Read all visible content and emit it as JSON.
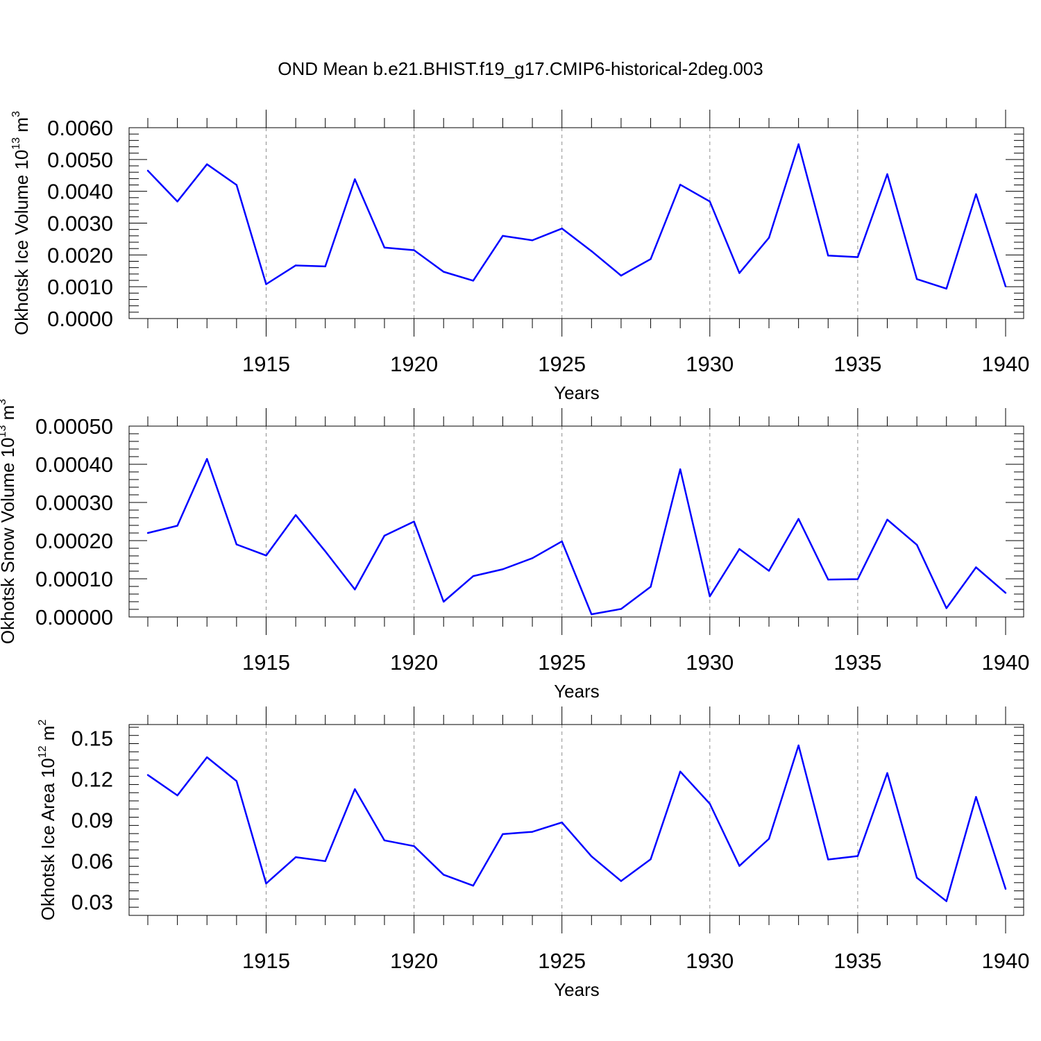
{
  "figure": {
    "title": "OND Mean b.e21.BHIST.f19_g17.CMIP6-historical-2deg.003"
  },
  "colors": {
    "series": "#0000ff",
    "grid": "#8c8c8c",
    "axis": "#000000"
  },
  "chart_data": [
    {
      "type": "line",
      "ylabel": "Okhotsk Ice Volume 10",
      "ylabel_exp": "13",
      "ylabel_unit": " m",
      "ylabel_unit_exp": "3",
      "xlabel": "Years",
      "xlim": [
        1911,
        1940
      ],
      "ylim": [
        0.0,
        0.006
      ],
      "xticks": [
        1915,
        1920,
        1925,
        1930,
        1935,
        1940
      ],
      "xtick_labels": [
        "1915",
        "1920",
        "1925",
        "1930",
        "1935",
        "1940"
      ],
      "yticks": [
        0.0,
        0.001,
        0.002,
        0.003,
        0.004,
        0.005,
        0.006
      ],
      "ytick_labels": [
        "0.0000",
        "0.0010",
        "0.0020",
        "0.0030",
        "0.0040",
        "0.0050",
        "0.0060"
      ],
      "grid": "vertical dashed at major x ticks",
      "series": [
        {
          "name": "Ice Volume",
          "x": [
            1911,
            1912,
            1913,
            1914,
            1915,
            1916,
            1917,
            1918,
            1919,
            1920,
            1921,
            1922,
            1923,
            1924,
            1925,
            1926,
            1927,
            1928,
            1929,
            1930,
            1931,
            1932,
            1933,
            1934,
            1935,
            1936,
            1937,
            1938,
            1939,
            1940
          ],
          "values": [
            0.00465,
            0.00368,
            0.00485,
            0.0042,
            0.00108,
            0.00167,
            0.00164,
            0.00438,
            0.00223,
            0.00215,
            0.00147,
            0.00119,
            0.0026,
            0.00246,
            0.00283,
            0.00212,
            0.00135,
            0.00187,
            0.00421,
            0.00368,
            0.00143,
            0.00254,
            0.00548,
            0.00198,
            0.00193,
            0.00454,
            0.00124,
            0.00094,
            0.00391,
            0.00101
          ]
        }
      ]
    },
    {
      "type": "line",
      "ylabel": "Okhotsk Snow Volume 10",
      "ylabel_exp": "13",
      "ylabel_unit": " m",
      "ylabel_unit_exp": "3",
      "xlabel": "Years",
      "xlim": [
        1911,
        1940
      ],
      "ylim": [
        0.0,
        0.0005
      ],
      "xticks": [
        1915,
        1920,
        1925,
        1930,
        1935,
        1940
      ],
      "xtick_labels": [
        "1915",
        "1920",
        "1925",
        "1930",
        "1935",
        "1940"
      ],
      "yticks": [
        0.0,
        0.0001,
        0.0002,
        0.0003,
        0.0004,
        0.0005
      ],
      "ytick_labels": [
        "0.00000",
        "0.00010",
        "0.00020",
        "0.00030",
        "0.00040",
        "0.00050"
      ],
      "grid": "vertical dashed at major x ticks",
      "series": [
        {
          "name": "Snow Volume",
          "x": [
            1911,
            1912,
            1913,
            1914,
            1915,
            1916,
            1917,
            1918,
            1919,
            1920,
            1921,
            1922,
            1923,
            1924,
            1925,
            1926,
            1927,
            1928,
            1929,
            1930,
            1931,
            1932,
            1933,
            1934,
            1935,
            1936,
            1937,
            1938,
            1939,
            1940
          ],
          "values": [
            0.00022,
            0.000239,
            0.000414,
            0.00019,
            0.000161,
            0.000267,
            0.000172,
            7.2e-05,
            0.000213,
            0.00025,
            4e-05,
            0.000107,
            0.000125,
            0.000154,
            0.000198,
            7e-06,
            2.1e-05,
            7.9e-05,
            0.000387,
            5.4e-05,
            0.000178,
            0.000121,
            0.000257,
            9.8e-05,
            9.9e-05,
            0.000255,
            0.000189,
            2.3e-05,
            0.00013,
            6.3e-05
          ]
        }
      ]
    },
    {
      "type": "line",
      "ylabel": "Okhotsk Ice Area 10",
      "ylabel_exp": "12",
      "ylabel_unit": " m",
      "ylabel_unit_exp": "2",
      "xlabel": "Years",
      "xlim": [
        1911,
        1940
      ],
      "ylim": [
        0.02,
        0.16
      ],
      "xticks": [
        1915,
        1920,
        1925,
        1930,
        1935,
        1940
      ],
      "xtick_labels": [
        "1915",
        "1920",
        "1925",
        "1930",
        "1935",
        "1940"
      ],
      "yticks": [
        0.03,
        0.06,
        0.09,
        0.12,
        0.15
      ],
      "ytick_labels": [
        "0.03",
        "0.06",
        "0.09",
        "0.12",
        "0.15"
      ],
      "grid": "vertical dashed at major x ticks",
      "series": [
        {
          "name": "Ice Area",
          "x": [
            1911,
            1912,
            1913,
            1914,
            1915,
            1916,
            1917,
            1918,
            1919,
            1920,
            1921,
            1922,
            1923,
            1924,
            1925,
            1926,
            1927,
            1928,
            1929,
            1930,
            1931,
            1932,
            1933,
            1934,
            1935,
            1936,
            1937,
            1938,
            1939,
            1940
          ],
          "values": [
            0.123,
            0.108,
            0.136,
            0.1185,
            0.0434,
            0.0627,
            0.0598,
            0.1126,
            0.075,
            0.0708,
            0.0498,
            0.0418,
            0.0796,
            0.0813,
            0.0882,
            0.0633,
            0.0452,
            0.0612,
            0.1255,
            0.1019,
            0.0563,
            0.0762,
            0.1447,
            0.061,
            0.0635,
            0.1244,
            0.0476,
            0.0304,
            0.1069,
            0.0394
          ]
        }
      ]
    }
  ]
}
